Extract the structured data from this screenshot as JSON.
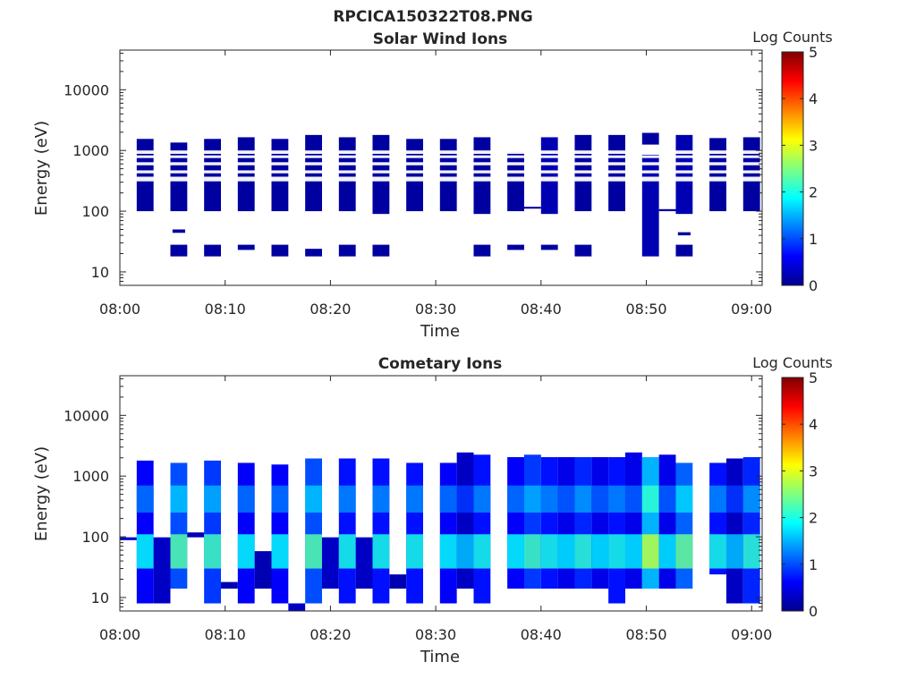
{
  "figure": {
    "title": "RPCICA150322T08.PNG"
  },
  "colorbar": {
    "title": "Log Counts",
    "ticks": [
      0,
      1,
      2,
      3,
      4,
      5
    ],
    "range": [
      0,
      5
    ]
  },
  "chart_data": [
    {
      "type": "heatmap",
      "title": "Solar Wind Ions",
      "xlabel": "Time",
      "ylabel": "Energy (eV)",
      "x_ticks": [
        "08:00",
        "08:10",
        "08:20",
        "08:30",
        "08:40",
        "08:50",
        "09:00"
      ],
      "xlim_min": [
        0,
        61
      ],
      "y_ticks": [
        10,
        100,
        1000,
        10000
      ],
      "y_tick_labels": [
        "10",
        "100",
        "1000",
        "10000"
      ],
      "ylim": [
        6,
        45000
      ],
      "y_scale": "log",
      "value_units": "Log Counts",
      "blocks": [
        {
          "t": [
            1.6,
            3.2
          ],
          "e": [
            100,
            1550
          ],
          "v": 0.1
        },
        {
          "t": [
            4.8,
            6.4
          ],
          "e": [
            100,
            1350
          ],
          "v": 0.1
        },
        {
          "t": [
            4.8,
            6.4
          ],
          "e": [
            18,
            28
          ],
          "v": 0.1
        },
        {
          "t": [
            5.0,
            6.2
          ],
          "e": [
            44,
            50
          ],
          "v": 0.1
        },
        {
          "t": [
            8.0,
            9.6
          ],
          "e": [
            100,
            1550
          ],
          "v": 0.1
        },
        {
          "t": [
            8.0,
            9.6
          ],
          "e": [
            18,
            28
          ],
          "v": 0.1
        },
        {
          "t": [
            11.2,
            12.8
          ],
          "e": [
            100,
            1650
          ],
          "v": 0.1
        },
        {
          "t": [
            11.2,
            12.8
          ],
          "e": [
            23,
            28
          ],
          "v": 0.1
        },
        {
          "t": [
            14.4,
            16.0
          ],
          "e": [
            100,
            1550
          ],
          "v": 0.1
        },
        {
          "t": [
            14.4,
            16.0
          ],
          "e": [
            18,
            28
          ],
          "v": 0.1
        },
        {
          "t": [
            17.6,
            19.2
          ],
          "e": [
            100,
            1800
          ],
          "v": 0.1
        },
        {
          "t": [
            17.6,
            19.2
          ],
          "e": [
            18,
            24
          ],
          "v": 0.1
        },
        {
          "t": [
            20.8,
            22.4
          ],
          "e": [
            100,
            1650
          ],
          "v": 0.1
        },
        {
          "t": [
            20.8,
            22.4
          ],
          "e": [
            18,
            28
          ],
          "v": 0.1
        },
        {
          "t": [
            24.0,
            25.6
          ],
          "e": [
            90,
            1800
          ],
          "v": 0.1
        },
        {
          "t": [
            24.0,
            25.6
          ],
          "e": [
            18,
            28
          ],
          "v": 0.1
        },
        {
          "t": [
            27.2,
            28.8
          ],
          "e": [
            100,
            1550
          ],
          "v": 0.1
        },
        {
          "t": [
            30.4,
            32.0
          ],
          "e": [
            100,
            1550
          ],
          "v": 0.1
        },
        {
          "t": [
            33.6,
            35.2
          ],
          "e": [
            90,
            1650
          ],
          "v": 0.1
        },
        {
          "t": [
            33.6,
            35.2
          ],
          "e": [
            18,
            28
          ],
          "v": 0.1
        },
        {
          "t": [
            36.8,
            38.4
          ],
          "e": [
            100,
            950
          ],
          "v": 0.1
        },
        {
          "t": [
            36.8,
            38.4
          ],
          "e": [
            23,
            28
          ],
          "v": 0.1
        },
        {
          "t": [
            38.4,
            40.0
          ],
          "e": [
            110,
            118
          ],
          "v": 0.1
        },
        {
          "t": [
            40.0,
            41.6
          ],
          "e": [
            90,
            1650
          ],
          "v": 0.2
        },
        {
          "t": [
            40.0,
            41.6
          ],
          "e": [
            23,
            28
          ],
          "v": 0.1
        },
        {
          "t": [
            43.2,
            44.8
          ],
          "e": [
            100,
            1800
          ],
          "v": 0.1
        },
        {
          "t": [
            43.2,
            44.8
          ],
          "e": [
            18,
            28
          ],
          "v": 0.1
        },
        {
          "t": [
            46.4,
            48.0
          ],
          "e": [
            100,
            1800
          ],
          "v": 0.1
        },
        {
          "t": [
            49.6,
            51.2
          ],
          "e": [
            18,
            850
          ],
          "v": 0.2
        },
        {
          "t": [
            49.6,
            51.2
          ],
          "e": [
            1250,
            1950
          ],
          "v": 0.1
        },
        {
          "t": [
            51.2,
            52.8
          ],
          "e": [
            100,
            108
          ],
          "v": 0.1
        },
        {
          "t": [
            52.8,
            54.4
          ],
          "e": [
            90,
            1800
          ],
          "v": 0.2
        },
        {
          "t": [
            52.8,
            54.4
          ],
          "e": [
            18,
            28
          ],
          "v": 0.1
        },
        {
          "t": [
            53.0,
            54.2
          ],
          "e": [
            40,
            45
          ],
          "v": 0.1
        },
        {
          "t": [
            56.0,
            57.6
          ],
          "e": [
            100,
            1600
          ],
          "v": 0.1
        },
        {
          "t": [
            59.2,
            60.8
          ],
          "e": [
            100,
            1650
          ],
          "v": 0.1
        }
      ],
      "gaps": [
        {
          "t_range": [
            0,
            61
          ],
          "e": [
            310,
            370
          ]
        },
        {
          "t_range": [
            0,
            61
          ],
          "e": [
            420,
            470
          ]
        },
        {
          "t_range": [
            0,
            61
          ],
          "e": [
            570,
            640
          ]
        },
        {
          "t_range": [
            0,
            61
          ],
          "e": [
            750,
            830
          ]
        },
        {
          "t_range": [
            0,
            61
          ],
          "e": [
            880,
            1000
          ]
        }
      ]
    },
    {
      "type": "heatmap",
      "title": "Cometary Ions",
      "xlabel": "Time",
      "ylabel": "Energy (eV)",
      "x_ticks": [
        "08:00",
        "08:10",
        "08:20",
        "08:30",
        "08:40",
        "08:50",
        "09:00"
      ],
      "xlim_min": [
        0,
        61
      ],
      "y_ticks": [
        10,
        100,
        1000,
        10000
      ],
      "y_tick_labels": [
        "10",
        "100",
        "1000",
        "10000"
      ],
      "ylim": [
        6,
        45000
      ],
      "y_scale": "log",
      "value_units": "Log Counts",
      "columns": [
        {
          "t": [
            0.0,
            1.6
          ],
          "e": [
            88,
            98
          ],
          "v": 0.4
        },
        {
          "t": [
            1.6,
            3.2
          ],
          "e": [
            8,
            1800
          ],
          "v": 0.6
        },
        {
          "t": [
            3.2,
            4.8
          ],
          "e": [
            8,
            98
          ],
          "v": 0.3
        },
        {
          "t": [
            4.8,
            6.4
          ],
          "e": [
            14,
            1650
          ],
          "v": 1.0
        },
        {
          "t": [
            6.4,
            8.0
          ],
          "e": [
            98,
            118
          ],
          "v": 0.2
        },
        {
          "t": [
            8.0,
            9.6
          ],
          "e": [
            8,
            1800
          ],
          "v": 0.9
        },
        {
          "t": [
            9.6,
            11.2
          ],
          "e": [
            14,
            18
          ],
          "v": 0.2
        },
        {
          "t": [
            11.2,
            12.8
          ],
          "e": [
            8,
            1650
          ],
          "v": 0.6
        },
        {
          "t": [
            12.8,
            14.4
          ],
          "e": [
            14,
            58
          ],
          "v": 0.2
        },
        {
          "t": [
            14.4,
            16.0
          ],
          "e": [
            8,
            1550
          ],
          "v": 0.6
        },
        {
          "t": [
            16.0,
            17.6
          ],
          "e": [
            6,
            8
          ],
          "v": 0.3
        },
        {
          "t": [
            17.6,
            19.2
          ],
          "e": [
            8,
            1950
          ],
          "v": 1.0
        },
        {
          "t": [
            19.2,
            20.8
          ],
          "e": [
            14,
            98
          ],
          "v": 0.3
        },
        {
          "t": [
            20.8,
            22.4
          ],
          "e": [
            8,
            1950
          ],
          "v": 0.7
        },
        {
          "t": [
            22.4,
            24.0
          ],
          "e": [
            14,
            98
          ],
          "v": 0.3
        },
        {
          "t": [
            24.0,
            25.6
          ],
          "e": [
            8,
            1950
          ],
          "v": 0.7
        },
        {
          "t": [
            25.6,
            27.2
          ],
          "e": [
            14,
            24
          ],
          "v": 0.2
        },
        {
          "t": [
            27.2,
            28.8
          ],
          "e": [
            8,
            1650
          ],
          "v": 0.7
        },
        {
          "t": [
            30.4,
            32.0
          ],
          "e": [
            8,
            1650
          ],
          "v": 0.6
        },
        {
          "t": [
            32.0,
            33.6
          ],
          "e": [
            14,
            2450
          ],
          "v": 0.3
        },
        {
          "t": [
            33.6,
            35.2
          ],
          "e": [
            8,
            2250
          ],
          "v": 0.7
        },
        {
          "t": [
            36.8,
            38.4
          ],
          "e": [
            14,
            2050
          ],
          "v": 0.6
        },
        {
          "t": [
            38.4,
            40.0
          ],
          "e": [
            14,
            2250
          ],
          "v": 0.9
        },
        {
          "t": [
            40.0,
            41.6
          ],
          "e": [
            14,
            2050
          ],
          "v": 0.7
        },
        {
          "t": [
            41.6,
            43.2
          ],
          "e": [
            14,
            2050
          ],
          "v": 0.5
        },
        {
          "t": [
            43.2,
            44.8
          ],
          "e": [
            14,
            2050
          ],
          "v": 0.8
        },
        {
          "t": [
            44.8,
            46.4
          ],
          "e": [
            14,
            2050
          ],
          "v": 0.5
        },
        {
          "t": [
            46.4,
            48.0
          ],
          "e": [
            8,
            2050
          ],
          "v": 0.7
        },
        {
          "t": [
            48.0,
            49.6
          ],
          "e": [
            14,
            2450
          ],
          "v": 0.5
        },
        {
          "t": [
            49.6,
            51.2
          ],
          "e": [
            14,
            2050
          ],
          "v": 1.5
        },
        {
          "t": [
            51.2,
            52.8
          ],
          "e": [
            14,
            2250
          ],
          "v": 0.5
        },
        {
          "t": [
            52.8,
            54.4
          ],
          "e": [
            14,
            1650
          ],
          "v": 1.1
        },
        {
          "t": [
            56.0,
            57.6
          ],
          "e": [
            24,
            1650
          ],
          "v": 0.7
        },
        {
          "t": [
            57.6,
            59.2
          ],
          "e": [
            8,
            1950
          ],
          "v": 0.3
        },
        {
          "t": [
            59.2,
            60.8
          ],
          "e": [
            8,
            2050
          ],
          "v": 0.8
        }
      ]
    }
  ]
}
